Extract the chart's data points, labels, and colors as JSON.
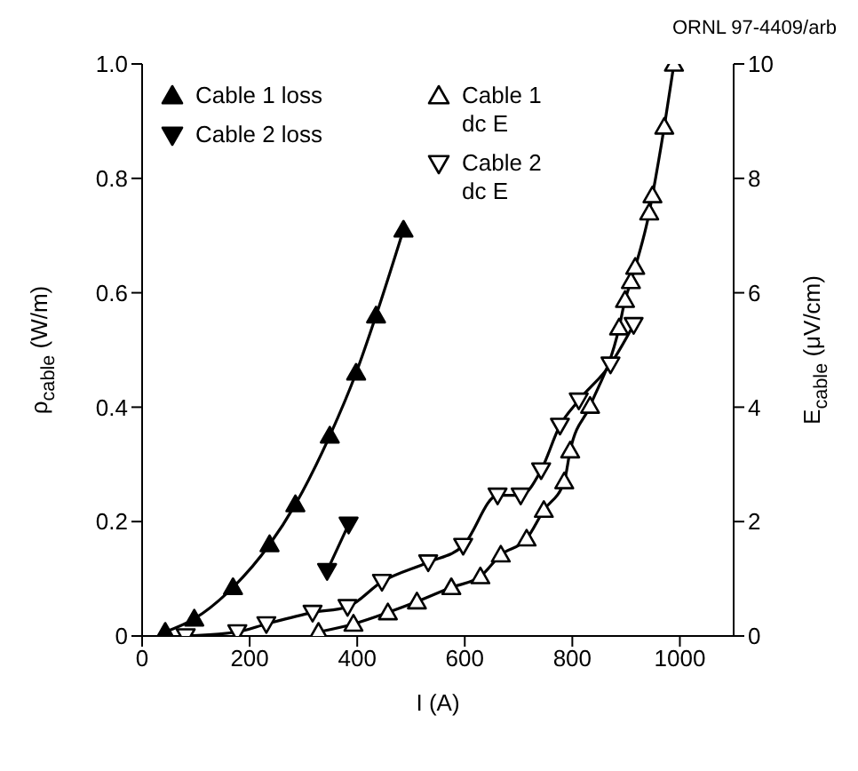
{
  "chart_data": {
    "type": "line",
    "annotations": [
      "ORNL 97-4409/arb"
    ],
    "xlabel": "I (A)",
    "ylabel": "ρ$_{cable}$ (W/m)",
    "y2label": "E$_{cable}$ (μV/cm)",
    "xlim": [
      0,
      1100
    ],
    "xticks": [
      0,
      200,
      400,
      600,
      800,
      1000
    ],
    "ylim": [
      0,
      1
    ],
    "yticks": [
      0,
      0.2,
      0.4,
      0.6,
      0.8,
      {
        "value": 1,
        "label": "1.0"
      }
    ],
    "y2lim": [
      0,
      10
    ],
    "y2ticks": [
      0,
      2,
      4,
      6,
      8,
      10
    ],
    "legend": "top left",
    "line_style": "solid",
    "series": [
      {
        "name": "Cable 1 loss",
        "color": "#000000",
        "marker": "triangle",
        "x": [
          43,
          97,
          169,
          237,
          285,
          349,
          398,
          435,
          486
        ],
        "values": [
          0.007,
          0.03,
          0.085,
          0.16,
          0.23,
          0.35,
          0.46,
          0.56,
          0.71
        ]
      },
      {
        "name": "Cable 2 loss",
        "color": "#000000",
        "marker": "triangle-down",
        "x": [
          344,
          384
        ],
        "values": [
          0.114,
          0.195
        ]
      },
      {
        "name": "Cable 1\ndc E",
        "color": "#000000",
        "marker": "triangle",
        "axis": "y2",
        "x": [
          328,
          393,
          457,
          511,
          575,
          629,
          667,
          715,
          747,
          785,
          796,
          833,
          887,
          898,
          909,
          917,
          943,
          949,
          971,
          989
        ],
        "values": [
          0.07,
          0.21,
          0.41,
          0.6,
          0.85,
          1.04,
          1.42,
          1.7,
          2.2,
          2.7,
          3.24,
          4.02,
          5.39,
          5.87,
          6.2,
          6.45,
          7.4,
          7.7,
          8.9,
          10
        ]
      },
      {
        "name": "Cable 2\ndc E",
        "color": "#000000",
        "marker": "triangle-down",
        "axis": "y2",
        "x": [
          81,
          177,
          231,
          317,
          382,
          446,
          532,
          597,
          661,
          704,
          742,
          777,
          812,
          871,
          914
        ],
        "values": [
          0,
          0.07,
          0.21,
          0.41,
          0.51,
          0.95,
          1.29,
          1.58,
          2.46,
          2.46,
          2.9,
          3.68,
          4.12,
          4.75,
          5.44
        ]
      }
    ]
  }
}
